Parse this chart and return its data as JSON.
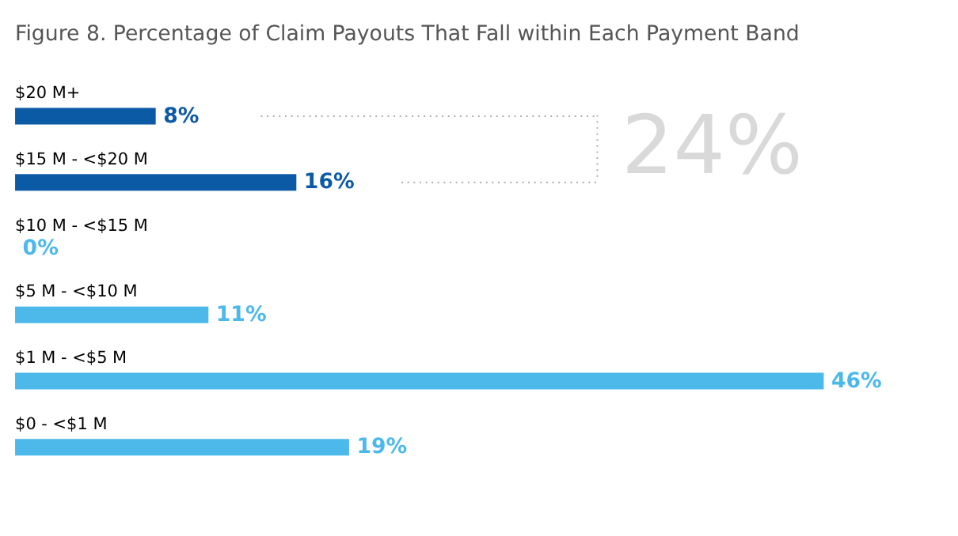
{
  "chart_data": {
    "type": "bar",
    "orientation": "horizontal",
    "title": "Figure 8. Percentage of Claim Payouts That Fall within Each Payment Band",
    "categories": [
      "$20 M+",
      "$15 M - <$20 M",
      "$10 M - <$15 M",
      "$5 M - <$10 M",
      "$1 M - <$5 M",
      "$0 - <$1 M"
    ],
    "values": [
      8,
      16,
      0,
      11,
      46,
      19
    ],
    "colors": [
      "#0b5aa5",
      "#0b5aa5",
      "#4cb9ea",
      "#4cb9ea",
      "#4cb9ea",
      "#4cb9ea"
    ],
    "value_labels": [
      "8%",
      "16%",
      "0%",
      "11%",
      "46%",
      "19%"
    ],
    "xlim": [
      0,
      46
    ],
    "annotations": [
      "24%"
    ]
  }
}
